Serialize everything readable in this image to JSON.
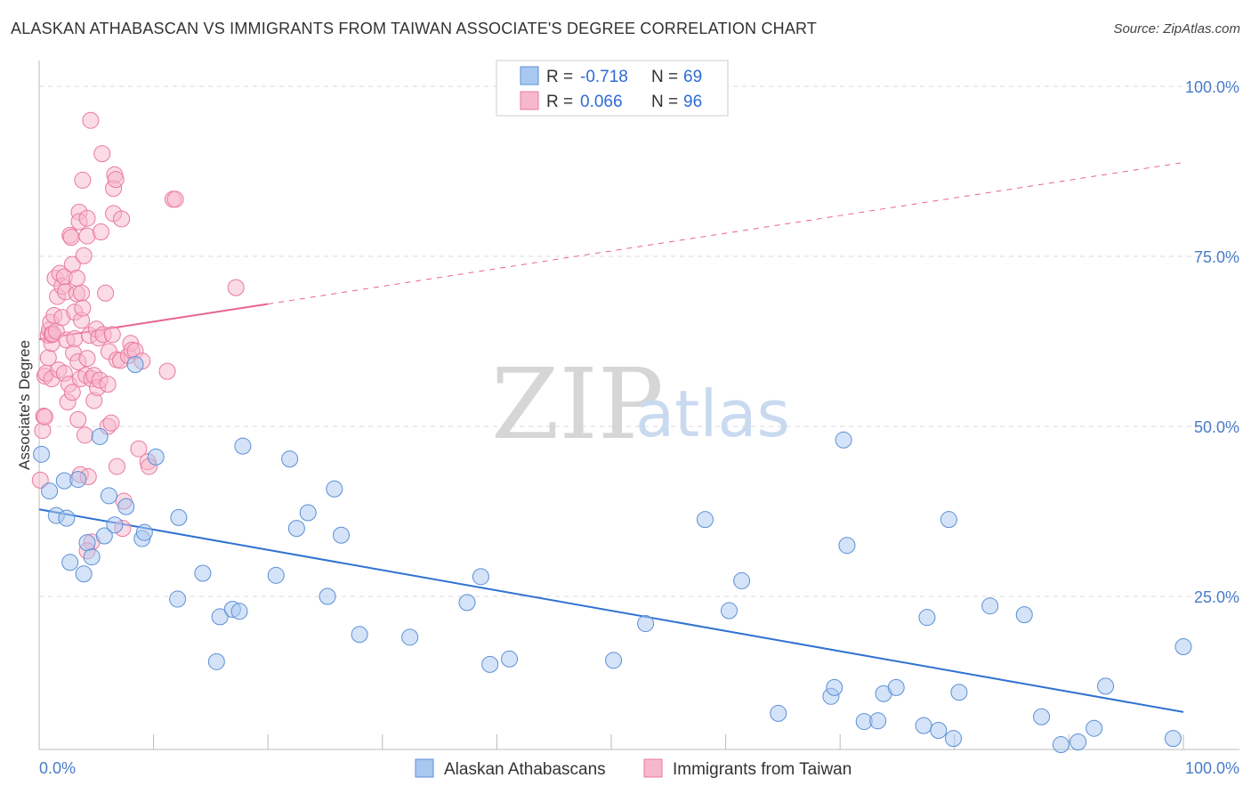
{
  "title": "ALASKAN ATHABASCAN VS IMMIGRANTS FROM TAIWAN ASSOCIATE'S DEGREE CORRELATION CHART",
  "source": "Source: ZipAtlas.com",
  "watermark": {
    "zip": "ZIP",
    "atlas": "atlas"
  },
  "colors": {
    "blue_fill": "#a9c8f0",
    "blue_stroke": "#5b8fd6",
    "blue_line": "#2f72d1",
    "pink_fill": "#f7b8cc",
    "pink_stroke": "#e9799d",
    "pink_line": "#e8648f",
    "grid": "#d8d8d8",
    "axis_text": "#4a7cc9"
  },
  "legend": {
    "row1": {
      "r_label": "R = ",
      "r_value": "-0.718",
      "n_label": "N = ",
      "n_value": "69"
    },
    "row2": {
      "r_label": "R = ",
      "r_value": "0.066",
      "n_label": "N = ",
      "n_value": "96"
    }
  },
  "chart_data": {
    "type": "scatter",
    "xlabel": "",
    "ylabel": "Associate's Degree",
    "xlim": [
      0,
      100
    ],
    "ylim": [
      0,
      100
    ],
    "x_tick_labels": [
      "0.0%",
      "100.0%"
    ],
    "y_tick_labels": [
      "100.0%",
      "75.0%",
      "50.0%",
      "25.0%"
    ],
    "y_ticks": [
      100,
      75,
      50,
      25
    ],
    "grid": true,
    "legend_position": "top-center",
    "series": [
      {
        "name": "Alaskan Athabascans",
        "color": "#a9c8f0",
        "trend": {
          "x0": 0,
          "y0": 37.8,
          "x1": 100,
          "y1": 8.0,
          "solid_to": 100
        },
        "points": [
          [
            0.2,
            45.9
          ],
          [
            0.9,
            40.5
          ],
          [
            1.5,
            36.9
          ],
          [
            2.2,
            42.0
          ],
          [
            2.4,
            36.5
          ],
          [
            2.7,
            30.0
          ],
          [
            3.4,
            42.2
          ],
          [
            3.9,
            28.3
          ],
          [
            4.2,
            32.9
          ],
          [
            4.6,
            30.8
          ],
          [
            5.3,
            48.5
          ],
          [
            5.7,
            33.9
          ],
          [
            6.1,
            39.8
          ],
          [
            6.6,
            35.5
          ],
          [
            7.6,
            38.2
          ],
          [
            8.4,
            59.1
          ],
          [
            9.0,
            33.5
          ],
          [
            9.2,
            34.4
          ],
          [
            10.2,
            45.5
          ],
          [
            12.1,
            24.6
          ],
          [
            12.2,
            36.6
          ],
          [
            14.3,
            28.4
          ],
          [
            15.5,
            15.4
          ],
          [
            15.8,
            22.0
          ],
          [
            16.9,
            23.1
          ],
          [
            17.5,
            22.8
          ],
          [
            17.8,
            47.1
          ],
          [
            20.7,
            28.1
          ],
          [
            21.9,
            45.2
          ],
          [
            22.5,
            35.0
          ],
          [
            23.5,
            37.3
          ],
          [
            25.2,
            25.0
          ],
          [
            25.8,
            40.8
          ],
          [
            26.4,
            34.0
          ],
          [
            28.0,
            19.4
          ],
          [
            32.4,
            19.0
          ],
          [
            37.4,
            24.1
          ],
          [
            39.4,
            15.0
          ],
          [
            41.1,
            15.8
          ],
          [
            38.6,
            27.9
          ],
          [
            50.2,
            15.6
          ],
          [
            53.0,
            21.0
          ],
          [
            58.2,
            36.3
          ],
          [
            60.3,
            22.9
          ],
          [
            61.4,
            27.3
          ],
          [
            64.6,
            7.8
          ],
          [
            69.2,
            10.3
          ],
          [
            69.5,
            11.6
          ],
          [
            70.3,
            48.0
          ],
          [
            70.6,
            32.5
          ],
          [
            72.1,
            6.6
          ],
          [
            73.3,
            6.7
          ],
          [
            73.8,
            10.7
          ],
          [
            74.9,
            11.6
          ],
          [
            77.3,
            6.0
          ],
          [
            77.6,
            21.9
          ],
          [
            78.6,
            5.3
          ],
          [
            79.5,
            36.3
          ],
          [
            79.9,
            4.1
          ],
          [
            80.4,
            10.9
          ],
          [
            83.1,
            23.6
          ],
          [
            86.1,
            22.3
          ],
          [
            87.6,
            7.3
          ],
          [
            89.3,
            3.2
          ],
          [
            90.8,
            3.6
          ],
          [
            92.2,
            5.6
          ],
          [
            93.2,
            11.8
          ],
          [
            99.1,
            4.1
          ],
          [
            100.0,
            17.6
          ]
        ]
      },
      {
        "name": "Immigrants from Taiwan",
        "color": "#f7b8cc",
        "trend": {
          "x0": 0,
          "y0": 62.8,
          "x1": 100,
          "y1": 88.8,
          "solid_to": 20.0
        },
        "points": [
          [
            0.1,
            42.1
          ],
          [
            0.3,
            49.4
          ],
          [
            0.4,
            51.5
          ],
          [
            0.5,
            51.4
          ],
          [
            0.5,
            57.4
          ],
          [
            0.6,
            57.8
          ],
          [
            0.8,
            60.1
          ],
          [
            0.8,
            63.4
          ],
          [
            0.9,
            64.2
          ],
          [
            1.0,
            65.3
          ],
          [
            1.1,
            57.0
          ],
          [
            1.1,
            62.2
          ],
          [
            1.1,
            63.5
          ],
          [
            1.2,
            63.6
          ],
          [
            1.3,
            66.3
          ],
          [
            1.4,
            71.8
          ],
          [
            1.5,
            64.0
          ],
          [
            1.6,
            69.1
          ],
          [
            1.7,
            58.3
          ],
          [
            1.8,
            72.5
          ],
          [
            2.0,
            70.6
          ],
          [
            2.0,
            66.0
          ],
          [
            2.2,
            57.8
          ],
          [
            2.2,
            72.0
          ],
          [
            2.3,
            69.8
          ],
          [
            2.4,
            62.7
          ],
          [
            2.5,
            53.6
          ],
          [
            2.6,
            56.2
          ],
          [
            2.7,
            78.1
          ],
          [
            2.8,
            77.8
          ],
          [
            2.9,
            73.8
          ],
          [
            2.9,
            55.0
          ],
          [
            3.0,
            60.8
          ],
          [
            3.1,
            62.9
          ],
          [
            3.1,
            66.8
          ],
          [
            3.3,
            69.5
          ],
          [
            3.3,
            71.8
          ],
          [
            3.4,
            51.0
          ],
          [
            3.4,
            59.5
          ],
          [
            3.5,
            81.5
          ],
          [
            3.5,
            80.1
          ],
          [
            3.6,
            42.9
          ],
          [
            3.6,
            57.0
          ],
          [
            3.7,
            65.6
          ],
          [
            3.7,
            69.6
          ],
          [
            3.8,
            86.2
          ],
          [
            3.8,
            67.4
          ],
          [
            3.9,
            75.1
          ],
          [
            4.0,
            48.7
          ],
          [
            4.1,
            57.5
          ],
          [
            4.2,
            60.0
          ],
          [
            4.2,
            78.0
          ],
          [
            4.2,
            80.6
          ],
          [
            4.3,
            42.6
          ],
          [
            4.4,
            63.4
          ],
          [
            4.5,
            95.0
          ],
          [
            4.6,
            33.0
          ],
          [
            4.6,
            57.0
          ],
          [
            4.8,
            57.5
          ],
          [
            4.8,
            53.8
          ],
          [
            5.0,
            64.3
          ],
          [
            5.1,
            55.7
          ],
          [
            5.2,
            63.0
          ],
          [
            5.3,
            56.8
          ],
          [
            5.4,
            78.6
          ],
          [
            5.5,
            90.1
          ],
          [
            5.6,
            63.5
          ],
          [
            5.8,
            69.6
          ],
          [
            6.0,
            56.2
          ],
          [
            6.0,
            50.0
          ],
          [
            6.1,
            61.0
          ],
          [
            6.3,
            50.5
          ],
          [
            6.4,
            63.5
          ],
          [
            6.5,
            81.3
          ],
          [
            6.5,
            85.0
          ],
          [
            6.6,
            87.0
          ],
          [
            6.8,
            44.1
          ],
          [
            6.7,
            86.3
          ],
          [
            6.8,
            59.8
          ],
          [
            7.1,
            59.7
          ],
          [
            7.2,
            80.5
          ],
          [
            7.3,
            35.0
          ],
          [
            7.4,
            39.0
          ],
          [
            7.8,
            60.4
          ],
          [
            8.0,
            62.2
          ],
          [
            8.1,
            61.2
          ],
          [
            8.4,
            61.1
          ],
          [
            8.7,
            46.7
          ],
          [
            9.0,
            59.6
          ],
          [
            9.5,
            44.8
          ],
          [
            9.6,
            44.1
          ],
          [
            11.2,
            58.1
          ],
          [
            11.7,
            83.4
          ],
          [
            11.9,
            83.4
          ],
          [
            17.2,
            70.4
          ],
          [
            4.2,
            31.7
          ]
        ]
      }
    ]
  },
  "bottom_legend": {
    "series1": "Alaskan Athabascans",
    "series2": "Immigrants from Taiwan"
  }
}
